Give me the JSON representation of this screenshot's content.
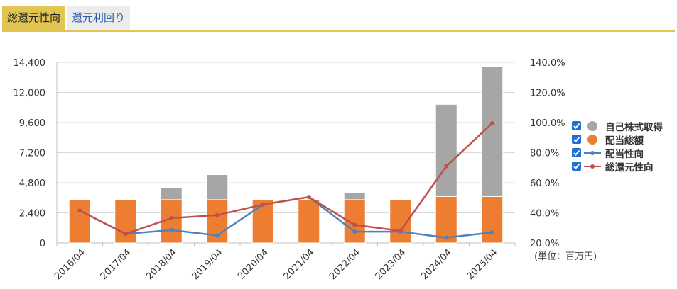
{
  "tabs": [
    {
      "label": "総還元性向",
      "active": true
    },
    {
      "label": "還元利回り",
      "active": false
    }
  ],
  "unit_label": "(単位：百万円)",
  "legend": [
    {
      "label": "自己株式取得",
      "kind": "dot",
      "color": "#a6a6a6"
    },
    {
      "label": "配当総額",
      "kind": "dot",
      "color": "#ed7d31"
    },
    {
      "label": "配当性向",
      "kind": "line",
      "color": "#4f81bd"
    },
    {
      "label": "総還元性向",
      "kind": "line",
      "color": "#c0504d"
    }
  ],
  "chart_data": {
    "type": "bar",
    "stacked": true,
    "categories": [
      "2016/04",
      "2017/04",
      "2018/04",
      "2019/04",
      "2020/04",
      "2021/04",
      "2022/04",
      "2023/04",
      "2024/04",
      "2025/04"
    ],
    "y_left": {
      "min": 0,
      "max": 14400,
      "ticks": [
        "0",
        "2,400",
        "4,800",
        "7,200",
        "9,600",
        "12,000",
        "14,400"
      ]
    },
    "y_right": {
      "min": 20,
      "max": 140,
      "ticks": [
        "20.0%",
        "40.0%",
        "60.0%",
        "80.0%",
        "100.0%",
        "120.0%",
        "140.0%"
      ]
    },
    "series": [
      {
        "name": "配当総額",
        "type": "bar",
        "axis": "left",
        "color": "#ed7d31",
        "values": [
          3450,
          3450,
          3450,
          3450,
          3450,
          3450,
          3450,
          3450,
          3700,
          3700
        ]
      },
      {
        "name": "自己株式取得",
        "type": "bar",
        "axis": "left",
        "color": "#a6a6a6",
        "values": [
          0,
          0,
          950,
          2000,
          0,
          0,
          550,
          0,
          7350,
          10350
        ]
      },
      {
        "name": "配当性向",
        "type": "line",
        "axis": "right",
        "color": "#4f81bd",
        "values": [
          41.5,
          26.0,
          28.5,
          25.0,
          45.5,
          50.5,
          27.5,
          27.5,
          23.5,
          27.0
        ]
      },
      {
        "name": "総還元性向",
        "type": "line",
        "axis": "right",
        "color": "#c0504d",
        "values": [
          41.5,
          26.0,
          36.5,
          38.5,
          45.5,
          50.5,
          32.0,
          28.0,
          71.0,
          99.5
        ]
      }
    ],
    "grid": "horizontal",
    "legend_position": "right"
  }
}
